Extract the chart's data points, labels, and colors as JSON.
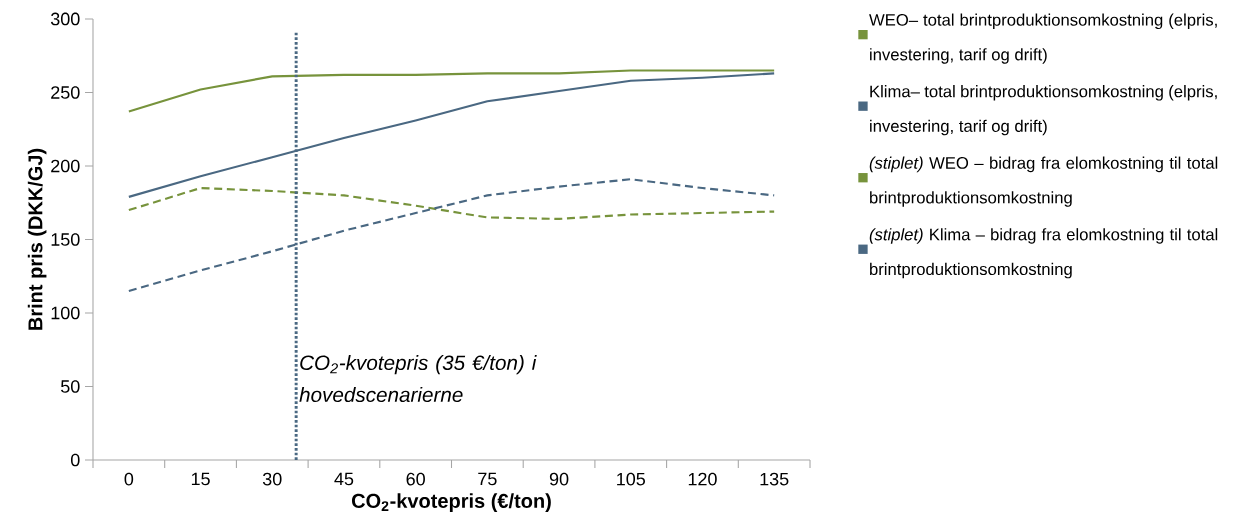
{
  "chart_data": {
    "type": "line",
    "xlabel": "CO$_{2}$-kvotepris (€/ton)",
    "ylabel": "Brint pris (DKK/GJ)",
    "x": [
      0,
      15,
      30,
      45,
      60,
      75,
      90,
      105,
      120,
      135
    ],
    "xlim": [
      -7.5,
      142.5
    ],
    "xticks": [
      0,
      15,
      30,
      45,
      60,
      75,
      90,
      105,
      120,
      135
    ],
    "ylim": [
      0,
      300
    ],
    "yticks": [
      0,
      50,
      100,
      150,
      200,
      250,
      300
    ],
    "legend": "right",
    "series": [
      {
        "name": "WEO–  total  brintproduktionsomkostning (elpris, investering, tarif og drift)",
        "color": "#77933c",
        "line_style": "solid",
        "values": [
          237,
          252,
          261,
          262,
          262,
          263,
          263,
          265,
          265,
          265
        ]
      },
      {
        "name": "Klima–  total  brintproduktionsomkostning (elpris, investering, tarif og drift)",
        "color": "#4a6882",
        "line_style": "solid",
        "values": [
          179,
          193,
          206,
          219,
          231,
          244,
          251,
          258,
          260,
          263
        ]
      },
      {
        "name": "*(stiplet)* WEO – bidrag fra elomkostning til total brintproduktionsomkostning",
        "color": "#77933c",
        "line_style": "dashed",
        "values": [
          170,
          185,
          183,
          180,
          173,
          165,
          164,
          167,
          168,
          169
        ]
      },
      {
        "name": "*(stiplet)* Klima – bidrag fra elomkostning til total brintproduktionsomkostning",
        "color": "#4a6882",
        "line_style": "dashed",
        "values": [
          115,
          129,
          142,
          156,
          168,
          180,
          186,
          191,
          185,
          180
        ]
      }
    ],
    "ref_lines": [
      {
        "axis": "x",
        "value": 35,
        "label": "CO$_{2}$-kvotepris (35 €/ton) i hovedscenarierne",
        "color": "#4a6882",
        "line_style": "dotted"
      }
    ]
  }
}
